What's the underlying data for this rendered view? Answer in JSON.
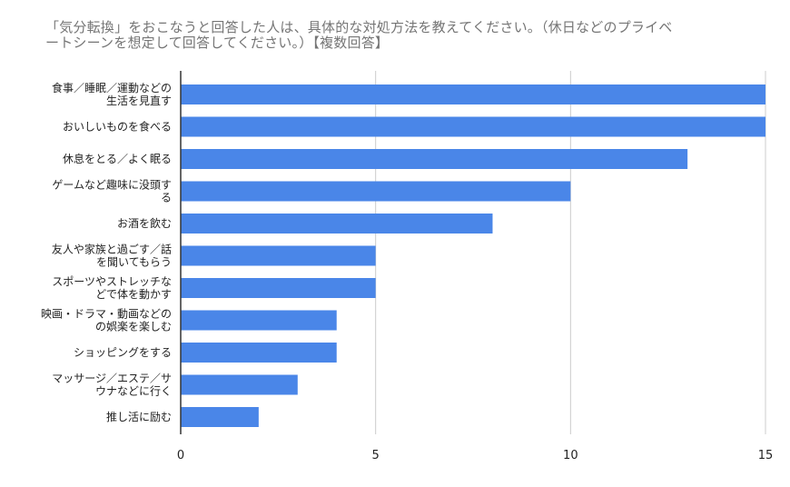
{
  "chart_data": {
    "type": "bar",
    "orientation": "horizontal",
    "title_lines": [
      "「気分転換」をおこなうと回答した人は、具体的な対処方法を教えてください。（休日などのプライベ",
      "ートシーンを想定して回答してください。）【複数回答】"
    ],
    "categories": [
      [
        "食事／睡眠／運動などの",
        "生活を見直す"
      ],
      [
        "おいしいものを食べる"
      ],
      [
        "休息をとる／よく眠る"
      ],
      [
        "ゲームなど趣味に没頭す",
        "る"
      ],
      [
        "お酒を飲む"
      ],
      [
        "友人や家族と過ごす／話",
        "を聞いてもらう"
      ],
      [
        "スポーツやストレッチな",
        "どで体を動かす"
      ],
      [
        "映画・ドラマ・動画などの",
        "の娯楽を楽しむ"
      ],
      [
        "ショッピングをする"
      ],
      [
        "マッサージ／エステ／サ",
        "ウナなどに行く"
      ],
      [
        "推し活に励む"
      ]
    ],
    "values": [
      15,
      15,
      13,
      10,
      8,
      5,
      5,
      4,
      4,
      3,
      2
    ],
    "xlim": [
      0,
      15
    ],
    "xticks": [
      0,
      5,
      10,
      15
    ],
    "grid": true,
    "bar_color": "#4a86e8",
    "grid_color": "#cccccc",
    "axis_color": "#333333"
  }
}
